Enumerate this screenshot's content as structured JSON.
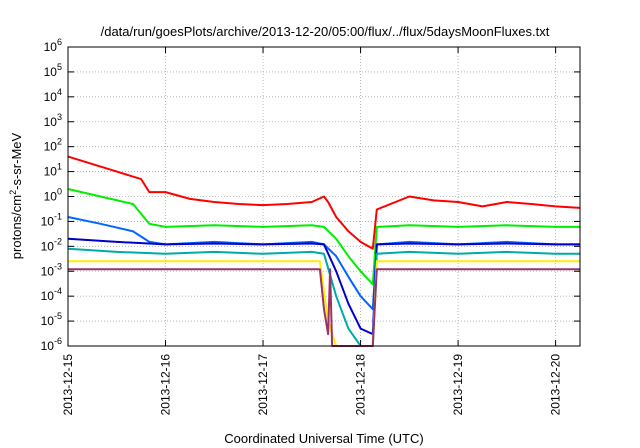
{
  "chart_data": {
    "type": "line",
    "title": "/data/run/goesPlots/archive/2013-12-20/05:00/flux/../flux/5daysMoonFluxes.txt",
    "xlabel": "Coordinated Universal Time (UTC)",
    "ylabel": {
      "prefix": "protons/cm",
      "superscript": "2",
      "suffix": "-s-sr-MeV"
    },
    "x_ticks": [
      "2013-12-15",
      "2013-12-16",
      "2013-12-17",
      "2013-12-18",
      "2013-12-19",
      "2013-12-20"
    ],
    "xlim": [
      "2013-12-15 00:00",
      "2013-12-20 06:00"
    ],
    "y_scale": "log",
    "ylim": [
      1e-06,
      1000000.0
    ],
    "y_ticks": [
      {
        "base": "10",
        "exp": "-6"
      },
      {
        "base": "10",
        "exp": "-5"
      },
      {
        "base": "10",
        "exp": "-4"
      },
      {
        "base": "10",
        "exp": "-3"
      },
      {
        "base": "10",
        "exp": "-2"
      },
      {
        "base": "10",
        "exp": "-1"
      },
      {
        "base": "10",
        "exp": "0"
      },
      {
        "base": "10",
        "exp": "1"
      },
      {
        "base": "10",
        "exp": "2"
      },
      {
        "base": "10",
        "exp": "3"
      },
      {
        "base": "10",
        "exp": "4"
      },
      {
        "base": "10",
        "exp": "5"
      },
      {
        "base": "10",
        "exp": "6"
      }
    ],
    "grid": true,
    "legend": "none",
    "series": [
      {
        "color": "#ff0000",
        "x": [
          "2013-12-15 00:00",
          "2013-12-15 06:00",
          "2013-12-15 12:00",
          "2013-12-15 18:00",
          "2013-12-15 20:00",
          "2013-12-16 00:00",
          "2013-12-16 06:00",
          "2013-12-16 12:00",
          "2013-12-16 18:00",
          "2013-12-17 00:00",
          "2013-12-17 06:00",
          "2013-12-17 12:00",
          "2013-12-17 15:00",
          "2013-12-17 16:00",
          "2013-12-17 18:00",
          "2013-12-17 21:00",
          "2013-12-18 00:00",
          "2013-12-18 03:00",
          "2013-12-18 04:00",
          "2013-12-18 12:00",
          "2013-12-18 18:00",
          "2013-12-19 00:00",
          "2013-12-19 06:00",
          "2013-12-19 12:00",
          "2013-12-19 18:00",
          "2013-12-20 00:00",
          "2013-12-20 06:00"
        ],
        "y": [
          40,
          20,
          10,
          5,
          1.5,
          1.5,
          0.8,
          0.6,
          0.5,
          0.45,
          0.5,
          0.6,
          1.0,
          0.6,
          0.15,
          0.04,
          0.015,
          0.008,
          0.3,
          1.0,
          0.7,
          0.6,
          0.4,
          0.6,
          0.5,
          0.4,
          0.35
        ]
      },
      {
        "color": "#00ee00",
        "x": [
          "2013-12-15 00:00",
          "2013-12-15 08:00",
          "2013-12-15 16:00",
          "2013-12-15 20:00",
          "2013-12-16 00:00",
          "2013-12-16 12:00",
          "2013-12-17 00:00",
          "2013-12-17 12:00",
          "2013-12-17 15:00",
          "2013-12-17 18:00",
          "2013-12-17 21:00",
          "2013-12-18 00:00",
          "2013-12-18 03:00",
          "2013-12-18 04:00",
          "2013-12-18 12:00",
          "2013-12-19 00:00",
          "2013-12-19 12:00",
          "2013-12-20 00:00",
          "2013-12-20 06:00"
        ],
        "y": [
          2.0,
          1.0,
          0.5,
          0.08,
          0.06,
          0.07,
          0.06,
          0.07,
          0.06,
          0.02,
          0.004,
          0.001,
          0.0003,
          0.06,
          0.07,
          0.06,
          0.07,
          0.06,
          0.06
        ]
      },
      {
        "color": "#0066ff",
        "x": [
          "2013-12-15 00:00",
          "2013-12-15 08:00",
          "2013-12-15 16:00",
          "2013-12-15 20:00",
          "2013-12-16 00:00",
          "2013-12-16 12:00",
          "2013-12-17 00:00",
          "2013-12-17 12:00",
          "2013-12-17 15:00",
          "2013-12-17 18:00",
          "2013-12-17 21:00",
          "2013-12-18 00:00",
          "2013-12-18 03:00",
          "2013-12-18 04:00",
          "2013-12-18 12:00",
          "2013-12-19 00:00",
          "2013-12-19 12:00",
          "2013-12-20 00:00",
          "2013-12-20 06:00"
        ],
        "y": [
          0.15,
          0.08,
          0.04,
          0.015,
          0.012,
          0.015,
          0.012,
          0.015,
          0.012,
          0.004,
          0.0006,
          0.0001,
          3e-05,
          0.012,
          0.015,
          0.012,
          0.015,
          0.012,
          0.012
        ]
      },
      {
        "color": "#0000cc",
        "x": [
          "2013-12-15 00:00",
          "2013-12-15 12:00",
          "2013-12-16 00:00",
          "2013-12-16 12:00",
          "2013-12-17 00:00",
          "2013-12-17 12:00",
          "2013-12-17 15:00",
          "2013-12-17 18:00",
          "2013-12-17 21:00",
          "2013-12-18 00:00",
          "2013-12-18 03:00",
          "2013-12-18 04:00",
          "2013-12-18 12:00",
          "2013-12-19 00:00",
          "2013-12-19 12:00",
          "2013-12-20 00:00",
          "2013-12-20 06:00"
        ],
        "y": [
          0.02,
          0.015,
          0.012,
          0.013,
          0.012,
          0.013,
          0.012,
          0.001,
          5e-05,
          5e-06,
          3e-06,
          0.012,
          0.013,
          0.012,
          0.013,
          0.012,
          0.012
        ]
      },
      {
        "color": "#00aaaa",
        "x": [
          "2013-12-15 00:00",
          "2013-12-15 12:00",
          "2013-12-16 00:00",
          "2013-12-16 12:00",
          "2013-12-17 00:00",
          "2013-12-17 12:00",
          "2013-12-17 15:00",
          "2013-12-17 18:00",
          "2013-12-17 21:00",
          "2013-12-18 00:00",
          "2013-12-18 03:00",
          "2013-12-18 04:00",
          "2013-12-18 12:00",
          "2013-12-19 00:00",
          "2013-12-19 12:00",
          "2013-12-20 00:00",
          "2013-12-20 06:00"
        ],
        "y": [
          0.008,
          0.006,
          0.005,
          0.006,
          0.005,
          0.006,
          0.005,
          0.0001,
          5e-06,
          1e-06,
          1e-06,
          0.005,
          0.006,
          0.005,
          0.006,
          0.005,
          0.005
        ]
      },
      {
        "color": "#ffee00",
        "x": [
          "2013-12-15 00:00",
          "2013-12-16 00:00",
          "2013-12-17 00:00",
          "2013-12-17 14:00",
          "2013-12-17 16:00",
          "2013-12-17 18:00",
          "2013-12-18 03:00",
          "2013-12-18 04:00",
          "2013-12-19 00:00",
          "2013-12-20 00:00",
          "2013-12-20 06:00"
        ],
        "y": [
          0.0025,
          0.0025,
          0.0025,
          0.0025,
          1e-05,
          1e-06,
          1e-06,
          0.0025,
          0.0025,
          0.0025,
          0.0025
        ]
      },
      {
        "color": "#993366",
        "x": [
          "2013-12-15 00:00",
          "2013-12-16 00:00",
          "2013-12-17 00:00",
          "2013-12-17 14:00",
          "2013-12-17 15:00",
          "2013-12-17 16:00",
          "2013-12-17 16:30",
          "2013-12-17 17:00",
          "2013-12-18 03:00",
          "2013-12-18 04:00",
          "2013-12-19 00:00",
          "2013-12-20 00:00",
          "2013-12-20 06:00"
        ],
        "y": [
          0.0012,
          0.0012,
          0.0012,
          0.0012,
          3e-05,
          3e-06,
          0.0012,
          1e-06,
          1e-06,
          0.0012,
          0.0012,
          0.0012,
          0.0012
        ]
      }
    ]
  }
}
